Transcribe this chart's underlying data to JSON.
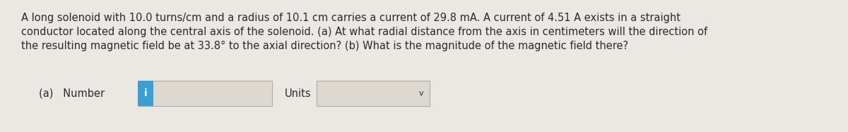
{
  "background_color": "#ebe8e4",
  "text_paragraph_bold_parts": [
    "(a)",
    "(b)"
  ],
  "text_line1": "A long solenoid with 10.0 turns/cm and a radius of 10.1 cm carries a current of 29.8 mA. A current of 4.51 A exists in a straight",
  "text_line2": "conductor located along the central axis of the solenoid. (a) At what radial distance from the axis in centimeters will the direction of",
  "text_line3": "the resulting magnetic field be at 33.8° to the axial direction? (b) What is the magnitude of the magnetic field there?",
  "label_a": "(a)   Number",
  "label_units": "Units",
  "info_button_color": "#3b9fd4",
  "info_button_text": "i",
  "info_button_text_color": "#ffffff",
  "input_box_facecolor": "#ddd8d0",
  "input_box_edgecolor": "#b0aaaa",
  "units_box_facecolor": "#ddd8d0",
  "units_box_edgecolor": "#b0aaaa",
  "text_color": "#2a2a2a",
  "font_size_paragraph": 10.5,
  "font_size_label": 10.5,
  "font_size_button": 10,
  "dropdown_v": "v"
}
